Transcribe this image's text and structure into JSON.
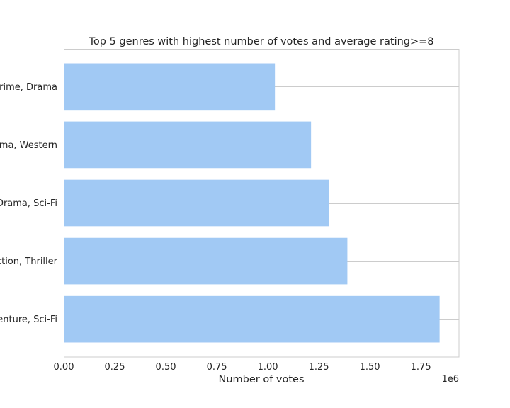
{
  "chart_data": {
    "type": "bar",
    "orientation": "horizontal",
    "title": "Top 5 genres with highest number of votes and average rating>=8",
    "xlabel": "Number of votes",
    "ylabel": "",
    "x_scale_label": "1e6",
    "xlim": [
      0,
      1937000
    ],
    "x_ticks": [
      0,
      250000,
      500000,
      750000,
      1000000,
      1250000,
      1500000,
      1750000
    ],
    "x_tick_labels": [
      "0.00",
      "0.25",
      "0.50",
      "0.75",
      "1.00",
      "1.25",
      "1.50",
      "1.75"
    ],
    "categories": [
      "Crime, Drama",
      "Drama, Western",
      "Drama, Sci-Fi",
      "Action, Thriller",
      "Adventure, Sci-Fi"
    ],
    "category_labels_visible": [
      "Crime, Drama",
      "ama, Western",
      "Drama, Sci-Fi",
      "Action, Thriller",
      "enture, Sci-Fi"
    ],
    "values": [
      1035000,
      1212000,
      1300000,
      1390000,
      1842000
    ],
    "bar_color": "#a1c9f4",
    "grid": true,
    "grid_color": "#cccccc",
    "legend": "none"
  }
}
